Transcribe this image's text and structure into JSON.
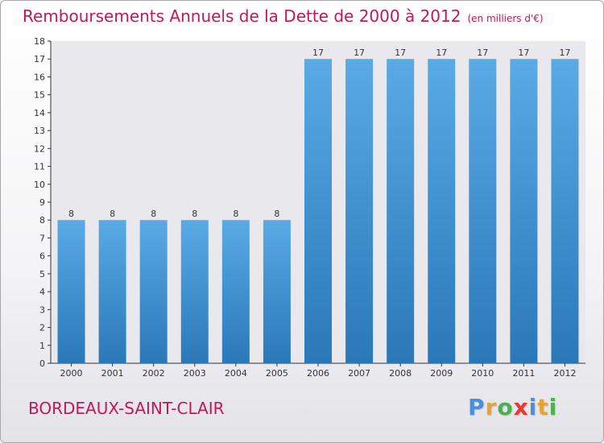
{
  "title": "Remboursements Annuels de la Dette de 2000 à 2012",
  "unit": "(en milliers d'€)",
  "city": "BORDEAUX-SAINT-CLAIR",
  "logo": {
    "text": "Proxiti",
    "letters": [
      {
        "char": "P",
        "color": "#4a90d9"
      },
      {
        "char": "r",
        "color": "#e8a23a"
      },
      {
        "char": "o",
        "color": "#4caf50"
      },
      {
        "char": "x",
        "color": "#e53935"
      },
      {
        "char": "i",
        "color": "#4a90d9"
      },
      {
        "char": "t",
        "color": "#e8a23a"
      },
      {
        "char": "i",
        "color": "#4caf50"
      }
    ]
  },
  "colors": {
    "bar_top": "#5aaae6",
    "bar_bottom": "#2a78b8",
    "title": "#c2185b"
  },
  "chart_data": {
    "type": "bar",
    "title": "Remboursements Annuels de la Dette de 2000 à 2012",
    "xlabel": "",
    "ylabel": "",
    "ylim": [
      0,
      18
    ],
    "yticks": [
      "0",
      "1",
      "2",
      "3",
      "4",
      "5",
      "6",
      "7",
      "8",
      "9",
      "10",
      "11",
      "12",
      "13",
      "14",
      "15",
      "16",
      "17",
      "18"
    ],
    "grid": false,
    "categories": [
      "2000",
      "2001",
      "2002",
      "2003",
      "2004",
      "2005",
      "2006",
      "2007",
      "2008",
      "2009",
      "2010",
      "2011",
      "2012"
    ],
    "values": [
      8,
      8,
      8,
      8,
      8,
      8,
      17,
      17,
      17,
      17,
      17,
      17,
      17
    ],
    "data_labels": [
      "8",
      "8",
      "8",
      "8",
      "8",
      "8",
      "17",
      "17",
      "17",
      "17",
      "17",
      "17",
      "17"
    ]
  }
}
